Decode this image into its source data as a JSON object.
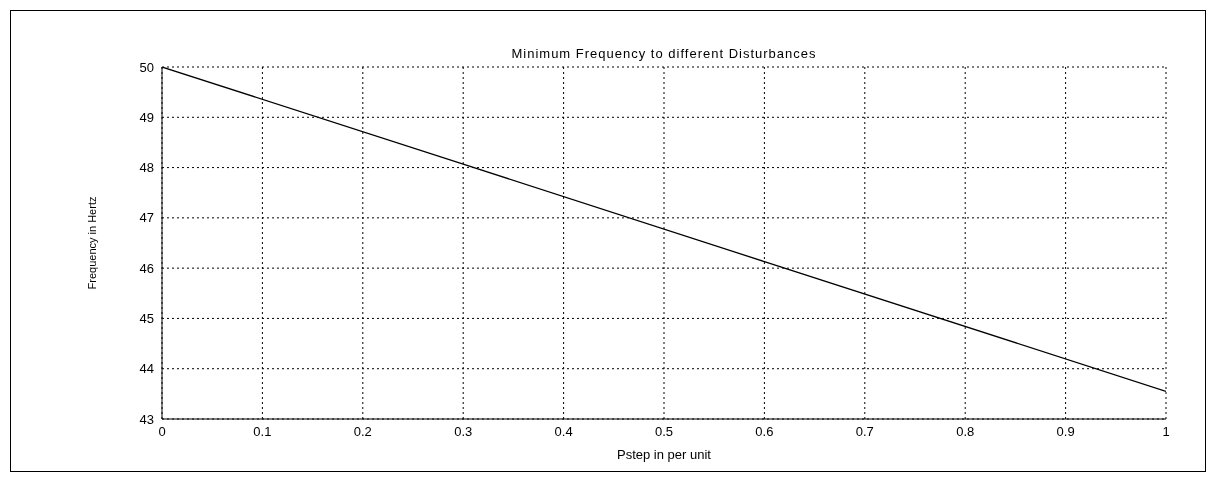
{
  "chart_data": {
    "type": "line",
    "title": "Minimum Frequency to different Disturbances",
    "xlabel": "Pstep in per unit",
    "ylabel": "Frequency in Hertz",
    "x": [
      0,
      0.3,
      0.6,
      1
    ],
    "series": [
      {
        "color": "#000000",
        "values": [
          50,
          48.07,
          46.13,
          43.55
        ]
      }
    ],
    "xlim": [
      0,
      1
    ],
    "xticks": [
      0,
      0.1,
      0.2,
      0.3,
      0.4,
      0.5,
      0.6,
      0.7,
      0.8,
      0.9,
      1
    ],
    "ylim": [
      43,
      50
    ],
    "yticks": [
      43,
      44,
      45,
      46,
      47,
      48,
      49,
      50
    ],
    "grid": true,
    "marker": "none",
    "line_style": "solid"
  }
}
